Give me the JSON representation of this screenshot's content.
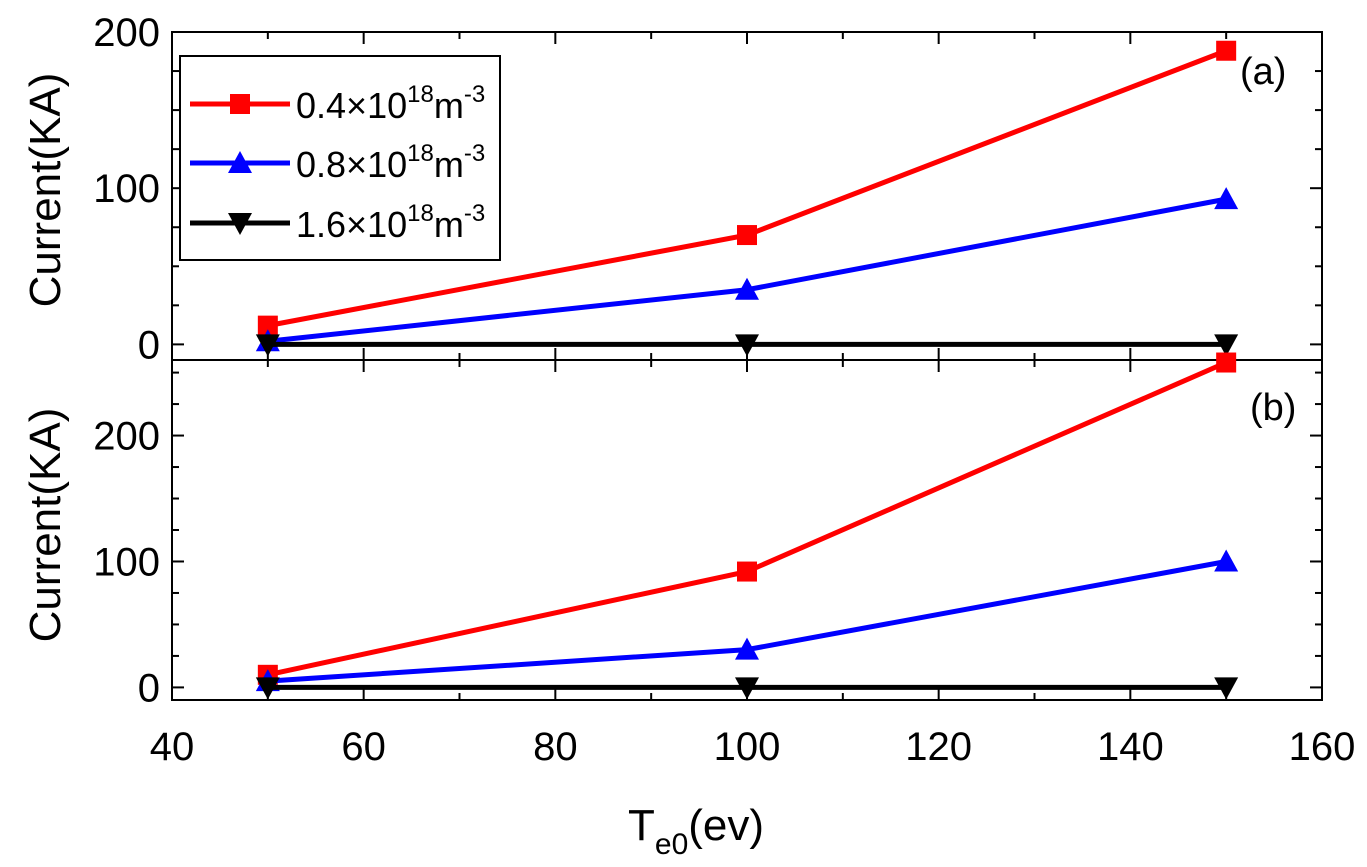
{
  "chart_data": [
    {
      "type": "line",
      "panel_label": "(a)",
      "ylabel": "Current(KA)",
      "ylim": [
        -10,
        200
      ],
      "yticks": [
        0,
        100,
        200
      ],
      "x": [
        50,
        100,
        150
      ],
      "series": [
        {
          "name": "0.4×10¹⁸m⁻³",
          "name_base": "0.4×10",
          "name_exp1": "18",
          "name_unit": "m",
          "name_exp2": "-3",
          "marker": "square",
          "color": "#ff0000",
          "values": [
            12,
            70,
            188
          ]
        },
        {
          "name": "0.8×10¹⁸m⁻³",
          "name_base": "0.8×10",
          "name_exp1": "18",
          "name_unit": "m",
          "name_exp2": "-3",
          "marker": "triangle-up",
          "color": "#0000ff",
          "values": [
            2,
            35,
            93
          ]
        },
        {
          "name": "1.6×10¹⁸m⁻³",
          "name_base": "1.6×10",
          "name_exp1": "18",
          "name_unit": "m",
          "name_exp2": "-3",
          "marker": "triangle-down",
          "color": "#000000",
          "values": [
            0,
            0,
            0
          ]
        }
      ],
      "legend": "top-left"
    },
    {
      "type": "line",
      "panel_label": "(b)",
      "ylabel": "Current(KA)",
      "ylim": [
        -10,
        260
      ],
      "yticks": [
        0,
        100,
        200
      ],
      "x": [
        50,
        100,
        150
      ],
      "series": [
        {
          "name": "0.4×10¹⁸m⁻³",
          "marker": "square",
          "color": "#ff0000",
          "values": [
            10,
            92,
            258
          ]
        },
        {
          "name": "0.8×10¹⁸m⁻³",
          "marker": "triangle-up",
          "color": "#0000ff",
          "values": [
            5,
            30,
            100
          ]
        },
        {
          "name": "1.6×10¹⁸m⁻³",
          "marker": "triangle-down",
          "color": "#000000",
          "values": [
            0,
            0,
            0
          ]
        }
      ]
    }
  ],
  "x_axis": {
    "xlim": [
      40,
      160
    ],
    "xticks": [
      40,
      60,
      80,
      100,
      120,
      140,
      160
    ],
    "xlabel_base": "T",
    "xlabel_sub": "e0",
    "xlabel_rest": "(ev)"
  }
}
